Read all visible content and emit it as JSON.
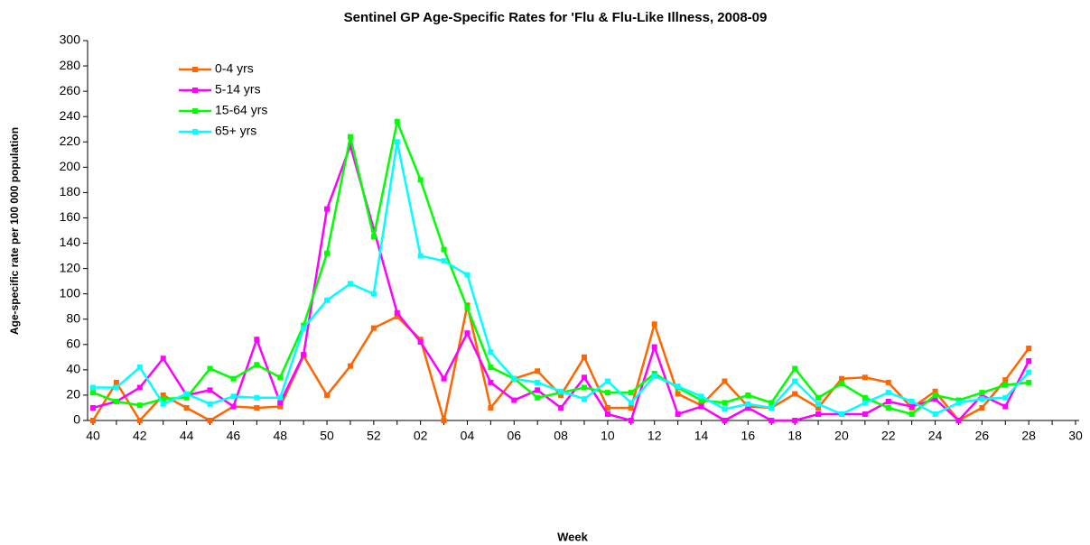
{
  "chart_data": {
    "type": "line",
    "title": "Sentinel GP Age-Specific Rates for 'Flu & Flu-Like Illness, 2008-09",
    "x_label": "Week",
    "y_label": "Age-specific rate per 100 000 population",
    "categories": [
      "40",
      null,
      "42",
      null,
      "44",
      null,
      "46",
      null,
      "48",
      null,
      "50",
      null,
      "52",
      null,
      "02",
      null,
      "04",
      null,
      "06",
      null,
      "08",
      null,
      "10",
      null,
      "12",
      null,
      "14",
      null,
      "16",
      null,
      "18",
      null,
      "20",
      null,
      "22",
      null,
      "24",
      null,
      "26",
      null,
      "28",
      null,
      "30"
    ],
    "series": [
      {
        "name": "0-4 yrs",
        "color": "#ff6600",
        "values": [
          0,
          30,
          0,
          20,
          10,
          0,
          11,
          10,
          11,
          51,
          20,
          43,
          73,
          82,
          64,
          0,
          91,
          10,
          33,
          39,
          20,
          50,
          10,
          10,
          76,
          21,
          12,
          31,
          11,
          10,
          21,
          10,
          33,
          34,
          30,
          10,
          23,
          0,
          10,
          32,
          57,
          null,
          null
        ]
      },
      {
        "name": "5-14 yrs",
        "color": "#ff00ff",
        "values": [
          10,
          15,
          26,
          49,
          20,
          24,
          11,
          64,
          14,
          52,
          167,
          217,
          151,
          85,
          62,
          33,
          69,
          30,
          16,
          24,
          10,
          34,
          5,
          0,
          58,
          5,
          11,
          0,
          10,
          0,
          0,
          5,
          5,
          5,
          15,
          11,
          17,
          0,
          20,
          11,
          47,
          null,
          null
        ]
      },
      {
        "name": "15-64 yrs",
        "color": "#00ff00",
        "values": [
          22,
          15,
          12,
          17,
          18,
          41,
          33,
          44,
          34,
          75,
          132,
          224,
          145,
          236,
          190,
          135,
          89,
          42,
          33,
          18,
          22,
          26,
          22,
          22,
          37,
          26,
          16,
          14,
          20,
          14,
          41,
          18,
          29,
          18,
          10,
          5,
          20,
          16,
          22,
          28,
          30,
          null,
          null
        ]
      },
      {
        "name": "65+ yrs",
        "color": "#00ffff",
        "values": [
          26,
          26,
          42,
          13,
          21,
          13,
          19,
          18,
          18,
          73,
          95,
          108,
          100,
          220,
          130,
          126,
          115,
          54,
          33,
          30,
          23,
          17,
          31,
          14,
          35,
          27,
          19,
          9,
          13,
          10,
          31,
          13,
          5,
          14,
          22,
          15,
          5,
          14,
          17,
          18,
          38,
          null,
          null
        ]
      }
    ],
    "ylim": [
      0,
      300
    ],
    "yticks": [
      0,
      20,
      40,
      60,
      80,
      100,
      120,
      140,
      160,
      180,
      200,
      220,
      240,
      260,
      280,
      300
    ],
    "grid": false,
    "legend": "upper-left"
  }
}
